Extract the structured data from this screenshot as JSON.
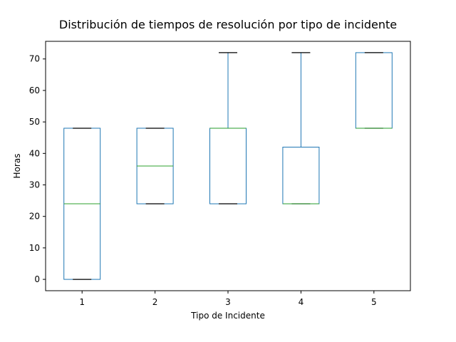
{
  "chart_data": {
    "type": "box",
    "title": "Distribución de tiempos de resolución por tipo de incidente",
    "xlabel": "Tipo de Incidente",
    "ylabel": "Horas",
    "categories": [
      "1",
      "2",
      "3",
      "4",
      "5"
    ],
    "boxes": [
      {
        "category": "1",
        "whisker_low": 0,
        "q1": 0,
        "median": 24,
        "q3": 48,
        "whisker_high": 48
      },
      {
        "category": "2",
        "whisker_low": 24,
        "q1": 24,
        "median": 36,
        "q3": 48,
        "whisker_high": 48
      },
      {
        "category": "3",
        "whisker_low": 24,
        "q1": 24,
        "median": 48,
        "q3": 48,
        "whisker_high": 72
      },
      {
        "category": "4",
        "whisker_low": 24,
        "q1": 24,
        "median": 24,
        "q3": 42,
        "whisker_high": 72
      },
      {
        "category": "5",
        "whisker_low": 48,
        "q1": 48,
        "median": 48,
        "q3": 72,
        "whisker_high": 72
      }
    ],
    "y_ticks": [
      0,
      10,
      20,
      30,
      40,
      50,
      60,
      70
    ],
    "ylim": [
      -3.6,
      75.6
    ],
    "grid": false,
    "colors": {
      "box": "#1f77b4",
      "median": "#2ca02c",
      "cap": "#000000"
    }
  }
}
